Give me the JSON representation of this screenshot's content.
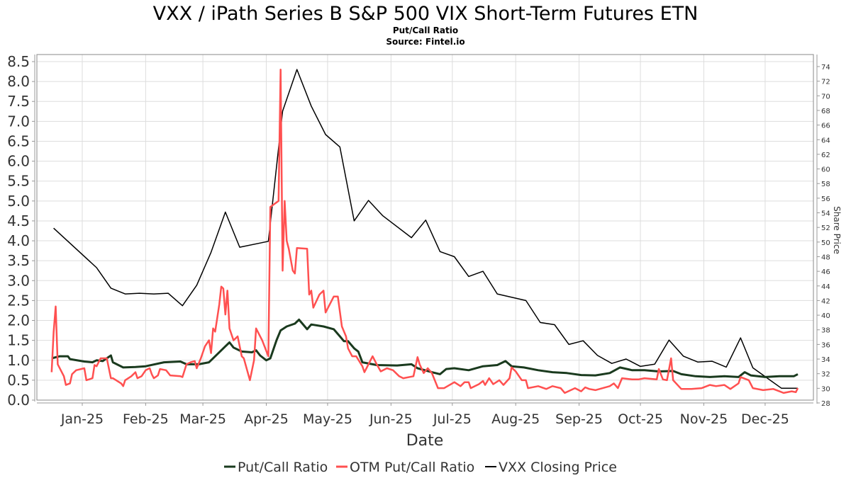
{
  "chart_data": {
    "type": "line",
    "title": "VXX / iPath Series B S&P 500 VIX Short-Term Futures ETN",
    "subtitle": "Put/Call Ratio",
    "source": "Source: Fintel.io",
    "xlabel": "Date",
    "ylabel_right": "Share Price",
    "x_units": "days since 2025-01-01",
    "x_ticks": [
      {
        "label": "Jan-25",
        "day": 0
      },
      {
        "label": "Feb-25",
        "day": 31
      },
      {
        "label": "Mar-25",
        "day": 59
      },
      {
        "label": "Apr-25",
        "day": 90
      },
      {
        "label": "May-25",
        "day": 120
      },
      {
        "label": "Jun-25",
        "day": 151
      },
      {
        "label": "Jul-25",
        "day": 181
      },
      {
        "label": "Aug-25",
        "day": 212
      },
      {
        "label": "Sep-25",
        "day": 243
      },
      {
        "label": "Oct-25",
        "day": 273
      },
      {
        "label": "Nov-25",
        "day": 304
      },
      {
        "label": "Dec-25",
        "day": 334
      }
    ],
    "y_left": {
      "range": [
        0,
        8.5
      ],
      "ticks": [
        "0.0",
        "0.5",
        "1.0",
        "1.5",
        "2.0",
        "2.5",
        "3.0",
        "3.5",
        "4.0",
        "4.5",
        "5.0",
        "5.5",
        "6.0",
        "6.5",
        "7.0",
        "7.5",
        "8.0",
        "8.5"
      ]
    },
    "y_right": {
      "range": [
        28,
        74
      ],
      "ticks": [
        "28",
        "30",
        "32",
        "34",
        "36",
        "38",
        "40",
        "42",
        "44",
        "46",
        "48",
        "50",
        "52",
        "54",
        "56",
        "58",
        "60",
        "62",
        "64",
        "66",
        "68",
        "70",
        "72",
        "74"
      ]
    },
    "grid": true,
    "legend_position": "bottom",
    "series": [
      {
        "name": "Put/Call Ratio",
        "axis": "left",
        "color": "#1a3a1e",
        "points": [
          [
            -15,
            1.05
          ],
          [
            -11,
            1.1
          ],
          [
            -7,
            1.1
          ],
          [
            -6,
            1.03
          ],
          [
            1,
            0.97
          ],
          [
            5,
            0.95
          ],
          [
            7,
            1.0
          ],
          [
            10,
            0.98
          ],
          [
            14,
            1.12
          ],
          [
            15,
            0.95
          ],
          [
            20,
            0.82
          ],
          [
            26,
            0.83
          ],
          [
            31,
            0.85
          ],
          [
            40,
            0.95
          ],
          [
            48,
            0.97
          ],
          [
            51,
            0.9
          ],
          [
            57,
            0.9
          ],
          [
            62,
            0.95
          ],
          [
            66,
            1.15
          ],
          [
            70,
            1.35
          ],
          [
            72,
            1.45
          ],
          [
            74,
            1.32
          ],
          [
            78,
            1.22
          ],
          [
            83,
            1.2
          ],
          [
            85,
            1.25
          ],
          [
            87,
            1.12
          ],
          [
            90,
            1.0
          ],
          [
            92,
            1.05
          ],
          [
            95,
            1.5
          ],
          [
            97,
            1.75
          ],
          [
            100,
            1.85
          ],
          [
            104,
            1.92
          ],
          [
            106,
            2.02
          ],
          [
            110,
            1.78
          ],
          [
            112,
            1.9
          ],
          [
            118,
            1.85
          ],
          [
            123,
            1.78
          ],
          [
            126,
            1.6
          ],
          [
            128,
            1.48
          ],
          [
            130,
            1.48
          ],
          [
            133,
            1.3
          ],
          [
            135,
            1.22
          ],
          [
            137,
            0.95
          ],
          [
            144,
            0.88
          ],
          [
            154,
            0.87
          ],
          [
            161,
            0.9
          ],
          [
            164,
            0.8
          ],
          [
            171,
            0.7
          ],
          [
            175,
            0.65
          ],
          [
            178,
            0.78
          ],
          [
            182,
            0.8
          ],
          [
            189,
            0.75
          ],
          [
            196,
            0.85
          ],
          [
            203,
            0.88
          ],
          [
            207,
            0.98
          ],
          [
            210,
            0.85
          ],
          [
            216,
            0.82
          ],
          [
            223,
            0.75
          ],
          [
            230,
            0.7
          ],
          [
            237,
            0.68
          ],
          [
            244,
            0.63
          ],
          [
            251,
            0.62
          ],
          [
            258,
            0.68
          ],
          [
            263,
            0.82
          ],
          [
            269,
            0.75
          ],
          [
            275,
            0.75
          ],
          [
            282,
            0.72
          ],
          [
            289,
            0.73
          ],
          [
            293,
            0.65
          ],
          [
            300,
            0.6
          ],
          [
            307,
            0.58
          ],
          [
            314,
            0.6
          ],
          [
            321,
            0.58
          ],
          [
            324,
            0.7
          ],
          [
            327,
            0.62
          ],
          [
            334,
            0.58
          ],
          [
            341,
            0.6
          ],
          [
            348,
            0.6
          ],
          [
            350,
            0.65
          ]
        ]
      },
      {
        "name": "OTM Put/Call Ratio",
        "axis": "left",
        "color": "#ff5050",
        "points": [
          [
            -15,
            0.7
          ],
          [
            -14,
            1.7
          ],
          [
            -13,
            2.35
          ],
          [
            -12,
            0.9
          ],
          [
            -9,
            0.6
          ],
          [
            -8,
            0.38
          ],
          [
            -6,
            0.42
          ],
          [
            -5,
            0.65
          ],
          [
            -3,
            0.75
          ],
          [
            1,
            0.8
          ],
          [
            2,
            0.5
          ],
          [
            5,
            0.55
          ],
          [
            6,
            0.88
          ],
          [
            7,
            0.85
          ],
          [
            9,
            1.05
          ],
          [
            12,
            1.05
          ],
          [
            14,
            0.55
          ],
          [
            15,
            0.55
          ],
          [
            19,
            0.42
          ],
          [
            20,
            0.35
          ],
          [
            21,
            0.5
          ],
          [
            24,
            0.6
          ],
          [
            26,
            0.7
          ],
          [
            27,
            0.55
          ],
          [
            29,
            0.6
          ],
          [
            31,
            0.75
          ],
          [
            33,
            0.8
          ],
          [
            34,
            0.65
          ],
          [
            35,
            0.55
          ],
          [
            37,
            0.62
          ],
          [
            38,
            0.78
          ],
          [
            41,
            0.75
          ],
          [
            43,
            0.62
          ],
          [
            48,
            0.6
          ],
          [
            49,
            0.58
          ],
          [
            51,
            0.9
          ],
          [
            53,
            0.95
          ],
          [
            55,
            0.98
          ],
          [
            56,
            0.8
          ],
          [
            58,
            1.05
          ],
          [
            60,
            1.35
          ],
          [
            62,
            1.5
          ],
          [
            63,
            1.18
          ],
          [
            64,
            1.8
          ],
          [
            65,
            1.72
          ],
          [
            67,
            2.4
          ],
          [
            68,
            2.85
          ],
          [
            69,
            2.8
          ],
          [
            70,
            2.15
          ],
          [
            71,
            2.75
          ],
          [
            72,
            1.8
          ],
          [
            74,
            1.5
          ],
          [
            76,
            1.6
          ],
          [
            78,
            1.1
          ],
          [
            79,
            1.05
          ],
          [
            82,
            0.5
          ],
          [
            84,
            1.0
          ],
          [
            85,
            1.8
          ],
          [
            88,
            1.5
          ],
          [
            91,
            1.1
          ],
          [
            92,
            4.85
          ],
          [
            96,
            5.0
          ],
          [
            97,
            8.3
          ],
          [
            98,
            3.25
          ],
          [
            99,
            5.0
          ],
          [
            100,
            4.0
          ],
          [
            101,
            3.8
          ],
          [
            103,
            3.25
          ],
          [
            104,
            3.18
          ],
          [
            105,
            3.82
          ],
          [
            110,
            3.8
          ],
          [
            111,
            2.65
          ],
          [
            112,
            2.75
          ],
          [
            113,
            2.32
          ],
          [
            116,
            2.65
          ],
          [
            118,
            2.75
          ],
          [
            119,
            2.2
          ],
          [
            123,
            2.6
          ],
          [
            125,
            2.6
          ],
          [
            127,
            1.85
          ],
          [
            129,
            1.6
          ],
          [
            130,
            1.3
          ],
          [
            132,
            1.1
          ],
          [
            134,
            1.1
          ],
          [
            137,
            0.85
          ],
          [
            138,
            0.7
          ],
          [
            140,
            0.9
          ],
          [
            142,
            1.1
          ],
          [
            144,
            0.9
          ],
          [
            146,
            0.72
          ],
          [
            149,
            0.8
          ],
          [
            152,
            0.75
          ],
          [
            155,
            0.6
          ],
          [
            157,
            0.55
          ],
          [
            162,
            0.6
          ],
          [
            164,
            1.08
          ],
          [
            165,
            0.9
          ],
          [
            167,
            0.68
          ],
          [
            169,
            0.8
          ],
          [
            171,
            0.68
          ],
          [
            174,
            0.3
          ],
          [
            177,
            0.3
          ],
          [
            182,
            0.45
          ],
          [
            185,
            0.35
          ],
          [
            187,
            0.45
          ],
          [
            189,
            0.45
          ],
          [
            190,
            0.3
          ],
          [
            194,
            0.4
          ],
          [
            196,
            0.48
          ],
          [
            197,
            0.38
          ],
          [
            199,
            0.55
          ],
          [
            201,
            0.4
          ],
          [
            204,
            0.5
          ],
          [
            206,
            0.38
          ],
          [
            209,
            0.55
          ],
          [
            210,
            0.82
          ],
          [
            212,
            0.72
          ],
          [
            215,
            0.5
          ],
          [
            217,
            0.5
          ],
          [
            218,
            0.3
          ],
          [
            223,
            0.35
          ],
          [
            227,
            0.28
          ],
          [
            230,
            0.35
          ],
          [
            234,
            0.3
          ],
          [
            236,
            0.18
          ],
          [
            241,
            0.3
          ],
          [
            244,
            0.22
          ],
          [
            246,
            0.32
          ],
          [
            248,
            0.28
          ],
          [
            251,
            0.25
          ],
          [
            258,
            0.35
          ],
          [
            260,
            0.42
          ],
          [
            262,
            0.3
          ],
          [
            264,
            0.55
          ],
          [
            269,
            0.52
          ],
          [
            272,
            0.52
          ],
          [
            275,
            0.55
          ],
          [
            281,
            0.52
          ],
          [
            282,
            0.78
          ],
          [
            284,
            0.52
          ],
          [
            286,
            0.5
          ],
          [
            288,
            1.05
          ],
          [
            289,
            0.5
          ],
          [
            293,
            0.28
          ],
          [
            298,
            0.28
          ],
          [
            303,
            0.3
          ],
          [
            307,
            0.38
          ],
          [
            310,
            0.35
          ],
          [
            314,
            0.38
          ],
          [
            317,
            0.28
          ],
          [
            321,
            0.42
          ],
          [
            322,
            0.58
          ],
          [
            326,
            0.5
          ],
          [
            328,
            0.3
          ],
          [
            333,
            0.25
          ],
          [
            338,
            0.28
          ],
          [
            341,
            0.22
          ],
          [
            343,
            0.18
          ],
          [
            347,
            0.22
          ],
          [
            349,
            0.2
          ],
          [
            350,
            0.3
          ]
        ]
      },
      {
        "name": "VXX Closing Price",
        "axis": "right",
        "color": "#000000",
        "points": [
          [
            -14,
            51.9
          ],
          [
            7,
            46.5
          ],
          [
            14,
            43.7
          ],
          [
            21,
            42.9
          ],
          [
            28,
            43.0
          ],
          [
            35,
            42.9
          ],
          [
            42,
            43.0
          ],
          [
            49,
            41.3
          ],
          [
            56,
            44.1
          ],
          [
            63,
            48.6
          ],
          [
            70,
            54.1
          ],
          [
            77,
            49.3
          ],
          [
            91,
            50.1
          ],
          [
            98,
            67.9
          ],
          [
            105,
            73.6
          ],
          [
            112,
            68.6
          ],
          [
            119,
            64.7
          ],
          [
            126,
            63.0
          ],
          [
            133,
            52.9
          ],
          [
            140,
            55.7
          ],
          [
            147,
            53.6
          ],
          [
            161,
            50.6
          ],
          [
            168,
            53.0
          ],
          [
            175,
            48.7
          ],
          [
            182,
            48.0
          ],
          [
            189,
            45.3
          ],
          [
            196,
            46.0
          ],
          [
            203,
            42.9
          ],
          [
            217,
            42.0
          ],
          [
            224,
            39.0
          ],
          [
            231,
            38.7
          ],
          [
            238,
            36.0
          ],
          [
            245,
            36.5
          ],
          [
            252,
            34.5
          ],
          [
            259,
            33.4
          ],
          [
            266,
            34.0
          ],
          [
            273,
            33.0
          ],
          [
            280,
            33.3
          ],
          [
            287,
            36.6
          ],
          [
            294,
            34.4
          ],
          [
            301,
            33.6
          ],
          [
            308,
            33.7
          ],
          [
            315,
            32.9
          ],
          [
            322,
            36.9
          ],
          [
            328,
            32.8
          ],
          [
            335,
            31.4
          ],
          [
            342,
            30.0
          ],
          [
            350,
            30.0
          ]
        ]
      }
    ]
  }
}
